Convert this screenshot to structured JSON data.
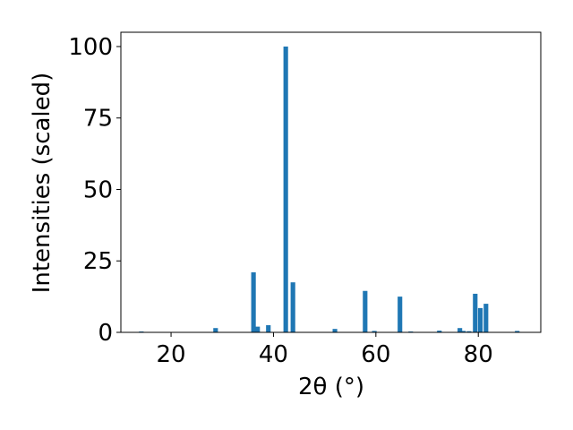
{
  "chart_data": {
    "type": "bar",
    "xlabel": "2θ (°)",
    "ylabel": "Intensities (scaled)",
    "x": [
      14.2,
      28.7,
      36.1,
      36.9,
      39.0,
      42.4,
      43.8,
      52.0,
      57.9,
      59.7,
      64.7,
      66.8,
      72.4,
      76.4,
      77.1,
      78.2,
      79.4,
      80.4,
      81.5,
      87.6
    ],
    "values": [
      0.3,
      1.5,
      21,
      2,
      2.5,
      100,
      17.5,
      1.2,
      14.5,
      0.5,
      12.5,
      0.3,
      0.6,
      1.5,
      0.5,
      0.4,
      13.5,
      8.5,
      10,
      0.5
    ],
    "color": "#1f77b4",
    "xlim": [
      10.2,
      92.2
    ],
    "xticks": [
      20,
      40,
      60,
      80
    ],
    "ylim": [
      0,
      105
    ],
    "yticks": [
      0,
      25,
      50,
      75,
      100
    ],
    "grid": false
  }
}
